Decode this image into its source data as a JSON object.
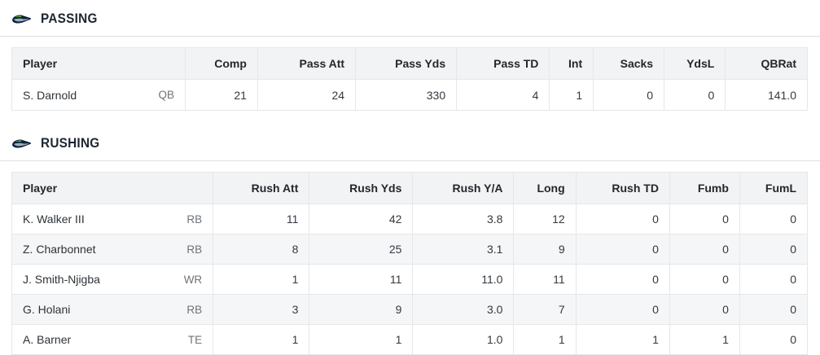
{
  "team": {
    "logo_icon": "seahawks-logo",
    "logo_colors": {
      "navy": "#0b2240",
      "silver": "#a5acb5",
      "green": "#69be28"
    }
  },
  "colors": {
    "header_bg": "#f2f3f5",
    "stripe_bg": "#f5f6f8",
    "border": "#e5e7e9",
    "divider": "#dcdfe2",
    "title_text": "#1c2630",
    "cell_text": "#333a41",
    "position_text": "#6e747a"
  },
  "sections": [
    {
      "id": "passing",
      "title": "PASSING",
      "columns": [
        "Player",
        "Comp",
        "Pass Att",
        "Pass Yds",
        "Pass TD",
        "Int",
        "Sacks",
        "YdsL",
        "QBRat"
      ],
      "rows": [
        {
          "player": "S. Darnold",
          "position": "QB",
          "stats": [
            "21",
            "24",
            "330",
            "4",
            "1",
            "0",
            "0",
            "141.0"
          ]
        }
      ]
    },
    {
      "id": "rushing",
      "title": "RUSHING",
      "columns": [
        "Player",
        "Rush Att",
        "Rush Yds",
        "Rush Y/A",
        "Long",
        "Rush TD",
        "Fumb",
        "FumL"
      ],
      "rows": [
        {
          "player": "K. Walker III",
          "position": "RB",
          "stats": [
            "11",
            "42",
            "3.8",
            "12",
            "0",
            "0",
            "0"
          ]
        },
        {
          "player": "Z. Charbonnet",
          "position": "RB",
          "stats": [
            "8",
            "25",
            "3.1",
            "9",
            "0",
            "0",
            "0"
          ]
        },
        {
          "player": "J. Smith-Njigba",
          "position": "WR",
          "stats": [
            "1",
            "11",
            "11.0",
            "11",
            "0",
            "0",
            "0"
          ]
        },
        {
          "player": "G. Holani",
          "position": "RB",
          "stats": [
            "3",
            "9",
            "3.0",
            "7",
            "0",
            "0",
            "0"
          ]
        },
        {
          "player": "A. Barner",
          "position": "TE",
          "stats": [
            "1",
            "1",
            "1.0",
            "1",
            "1",
            "1",
            "0"
          ]
        }
      ]
    }
  ]
}
